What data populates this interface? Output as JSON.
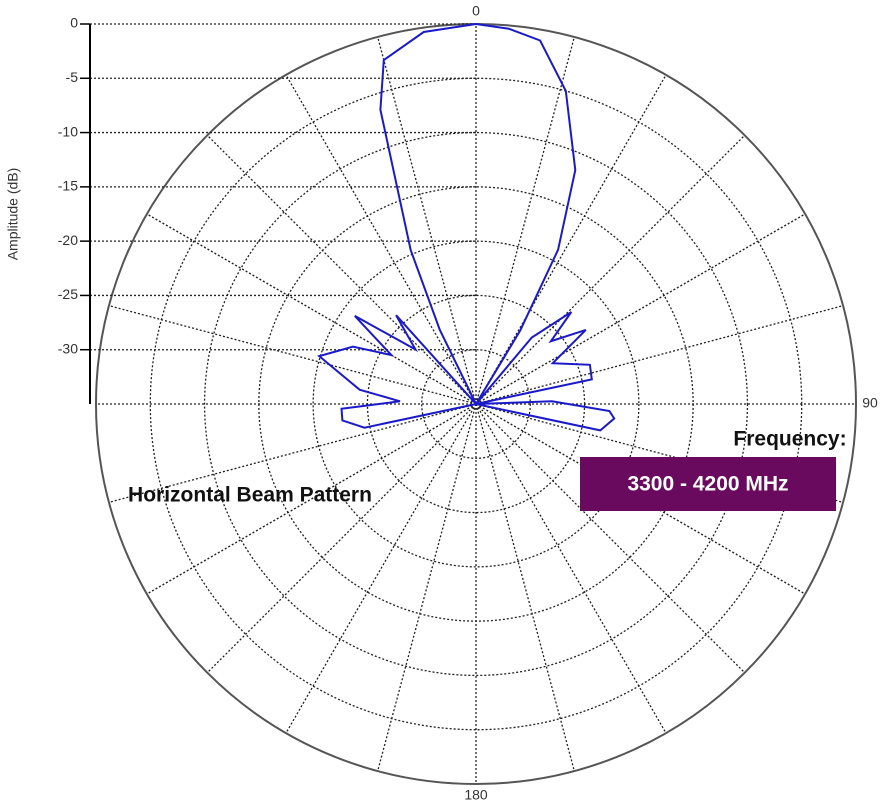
{
  "chart_data": {
    "type": "polar",
    "title": "Horizontal Beam Pattern",
    "annotations": [
      "Frequency:",
      "3300 - 4200 MHz"
    ],
    "rlabel": "Amplitude (dB)",
    "rlim": [
      -35,
      0
    ],
    "rticks": [
      0,
      -5,
      -10,
      -15,
      -20,
      -25,
      -30
    ],
    "thetaticks": [
      0,
      90,
      180
    ],
    "thetagrid": [
      0,
      15,
      30,
      45,
      60,
      75,
      90,
      105,
      120,
      135,
      150,
      165,
      180,
      195,
      210,
      225,
      240,
      255,
      270,
      285,
      300,
      315,
      330,
      345
    ],
    "grid": true,
    "box_color": "#6a0a5f",
    "series": [
      {
        "name": "Horizontal",
        "color": "#1a1acc",
        "x": [
          0,
          5,
          10,
          16,
          23,
          28,
          31,
          34,
          40,
          46,
          50,
          56,
          62,
          71,
          78,
          82,
          88,
          93,
          96,
          102,
          106,
          254,
          258,
          263,
          268,
          272,
          277,
          287,
          295,
          300,
          306,
          312,
          318,
          324,
          334,
          337,
          342,
          345,
          352,
          360
        ],
        "values": [
          0,
          -0.3,
          -1.0,
          -5.0,
          -11.6,
          -18.9,
          -27.1,
          -35,
          -27,
          -22.8,
          -26,
          -22.8,
          -27,
          -23.9,
          -24.1,
          -35,
          -28,
          -22.7,
          -22.2,
          -23.3,
          -35,
          -35,
          -24.5,
          -22.6,
          -22.6,
          -28,
          -24.2,
          -19.9,
          -22.5,
          -26,
          -21.2,
          -27.5,
          -24,
          -35,
          -27.4,
          -19.6,
          -6.5,
          -2.2,
          -0.4,
          0
        ]
      }
    ]
  }
}
